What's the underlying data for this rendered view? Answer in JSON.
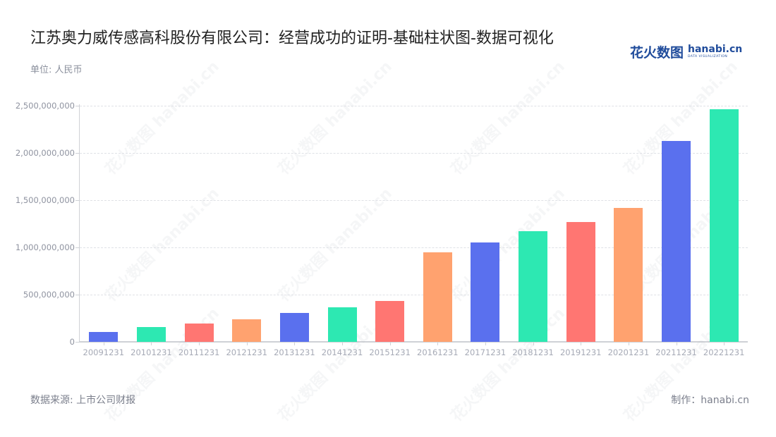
{
  "header": {
    "title": "江苏奥力威传感高科股份有限公司：经营成功的证明-基础柱状图-数据可视化",
    "unit": "单位: 人民币",
    "logo_cn": "花火数图",
    "logo_en": "hanabi.cn",
    "logo_sub": "DATA VISUALIZATION"
  },
  "footer": {
    "source": "数据来源: 上市公司财报",
    "credit": "制作：hanabi.cn"
  },
  "watermark": "花火数图 hanabi.cn",
  "colors": [
    "#5A70EE",
    "#2DE8B2",
    "#FF7672",
    "#FFA26F"
  ],
  "chart_data": {
    "type": "bar",
    "title": "江苏奥力威传感高科股份有限公司：经营成功的证明-基础柱状图-数据可视化",
    "subtitle": "单位: 人民币",
    "xlabel": "",
    "ylabel": "",
    "categories": [
      "20091231",
      "20101231",
      "20111231",
      "20121231",
      "20131231",
      "20141231",
      "20151231",
      "20161231",
      "20171231",
      "20181231",
      "20191231",
      "20201231",
      "20211231",
      "20221231"
    ],
    "values": [
      101000000,
      157000000,
      196000000,
      236000000,
      306000000,
      368000000,
      436000000,
      945000000,
      1050000000,
      1172000000,
      1272000000,
      1421000000,
      2130000000,
      2466000000
    ],
    "ylim": [
      0,
      2500000000
    ],
    "yticks": [
      "0",
      "500,000,000",
      "1,000,000,000",
      "1,500,000,000",
      "2,000,000,000",
      "2,500,000,000"
    ],
    "ytick_values": [
      0,
      500000000,
      1000000000,
      1500000000,
      2000000000,
      2500000000
    ],
    "grid": true,
    "legend": null,
    "source": "数据来源: 上市公司财报"
  }
}
